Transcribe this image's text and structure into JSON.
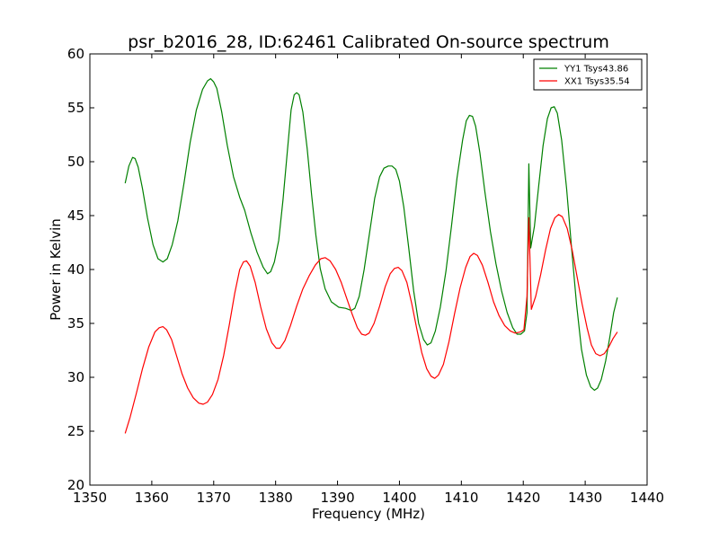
{
  "chart_data": {
    "type": "line",
    "title": "psr_b2016_28, ID:62461 Calibrated On-source spectrum",
    "xlabel": "Frequency (MHz)",
    "ylabel": "Power in Kelvin",
    "xlim": [
      1350,
      1440
    ],
    "ylim": [
      20,
      60
    ],
    "xticks": [
      1350,
      1360,
      1370,
      1380,
      1390,
      1400,
      1410,
      1420,
      1430,
      1440
    ],
    "yticks": [
      20,
      25,
      30,
      35,
      40,
      45,
      50,
      55,
      60
    ],
    "grid": false,
    "legend_position": "top-right",
    "series": [
      {
        "name": "YY1 Tsys43.86",
        "color": "#008000",
        "points": [
          [
            1355.7,
            48.0
          ],
          [
            1356.3,
            49.6
          ],
          [
            1356.9,
            50.4
          ],
          [
            1357.3,
            50.3
          ],
          [
            1357.8,
            49.5
          ],
          [
            1358.5,
            47.5
          ],
          [
            1359.3,
            44.8
          ],
          [
            1360.2,
            42.3
          ],
          [
            1361.0,
            41.0
          ],
          [
            1361.8,
            40.7
          ],
          [
            1362.5,
            41.0
          ],
          [
            1363.3,
            42.3
          ],
          [
            1364.2,
            44.5
          ],
          [
            1365.2,
            48.0
          ],
          [
            1366.2,
            51.8
          ],
          [
            1367.2,
            54.8
          ],
          [
            1368.2,
            56.7
          ],
          [
            1369.0,
            57.5
          ],
          [
            1369.5,
            57.7
          ],
          [
            1370.0,
            57.4
          ],
          [
            1370.5,
            56.8
          ],
          [
            1371.3,
            54.6
          ],
          [
            1372.2,
            51.5
          ],
          [
            1373.2,
            48.6
          ],
          [
            1374.2,
            46.7
          ],
          [
            1375.0,
            45.5
          ],
          [
            1376.0,
            43.4
          ],
          [
            1377.0,
            41.6
          ],
          [
            1378.0,
            40.2
          ],
          [
            1378.7,
            39.6
          ],
          [
            1379.2,
            39.8
          ],
          [
            1379.8,
            40.7
          ],
          [
            1380.5,
            42.7
          ],
          [
            1381.2,
            46.5
          ],
          [
            1381.9,
            51.0
          ],
          [
            1382.5,
            54.8
          ],
          [
            1383.0,
            56.2
          ],
          [
            1383.4,
            56.4
          ],
          [
            1383.8,
            56.2
          ],
          [
            1384.4,
            54.6
          ],
          [
            1385.1,
            51.2
          ],
          [
            1385.8,
            47.0
          ],
          [
            1386.5,
            43.2
          ],
          [
            1387.2,
            40.1
          ],
          [
            1388.0,
            38.2
          ],
          [
            1389.0,
            37.0
          ],
          [
            1390.2,
            36.5
          ],
          [
            1391.3,
            36.4
          ],
          [
            1392.2,
            36.2
          ],
          [
            1392.8,
            36.4
          ],
          [
            1393.5,
            37.5
          ],
          [
            1394.3,
            40.0
          ],
          [
            1395.2,
            43.5
          ],
          [
            1396.0,
            46.6
          ],
          [
            1396.8,
            48.6
          ],
          [
            1397.5,
            49.4
          ],
          [
            1398.2,
            49.6
          ],
          [
            1398.8,
            49.6
          ],
          [
            1399.4,
            49.3
          ],
          [
            1400.0,
            48.2
          ],
          [
            1400.7,
            45.8
          ],
          [
            1401.5,
            42.0
          ],
          [
            1402.3,
            38.0
          ],
          [
            1403.1,
            35.0
          ],
          [
            1403.9,
            33.5
          ],
          [
            1404.5,
            33.0
          ],
          [
            1405.1,
            33.2
          ],
          [
            1405.8,
            34.3
          ],
          [
            1406.6,
            36.5
          ],
          [
            1407.5,
            39.8
          ],
          [
            1408.4,
            44.0
          ],
          [
            1409.3,
            48.5
          ],
          [
            1410.2,
            52.0
          ],
          [
            1410.8,
            53.8
          ],
          [
            1411.3,
            54.3
          ],
          [
            1411.8,
            54.2
          ],
          [
            1412.3,
            53.3
          ],
          [
            1413.0,
            50.8
          ],
          [
            1413.8,
            47.2
          ],
          [
            1414.7,
            43.5
          ],
          [
            1415.6,
            40.5
          ],
          [
            1416.5,
            38.0
          ],
          [
            1417.4,
            36.0
          ],
          [
            1418.3,
            34.6
          ],
          [
            1419.0,
            34.0
          ],
          [
            1419.6,
            34.0
          ],
          [
            1420.2,
            34.3
          ],
          [
            1420.6,
            36.0
          ],
          [
            1420.9,
            49.8
          ],
          [
            1421.2,
            42.0
          ],
          [
            1421.8,
            44.0
          ],
          [
            1422.5,
            47.8
          ],
          [
            1423.2,
            51.5
          ],
          [
            1423.9,
            54.0
          ],
          [
            1424.5,
            55.0
          ],
          [
            1425.0,
            55.1
          ],
          [
            1425.5,
            54.5
          ],
          [
            1426.2,
            52.0
          ],
          [
            1427.0,
            47.5
          ],
          [
            1427.8,
            42.0
          ],
          [
            1428.6,
            36.8
          ],
          [
            1429.4,
            32.6
          ],
          [
            1430.2,
            30.2
          ],
          [
            1430.9,
            29.1
          ],
          [
            1431.5,
            28.8
          ],
          [
            1432.0,
            29.0
          ],
          [
            1432.6,
            29.8
          ],
          [
            1433.3,
            31.5
          ],
          [
            1434.0,
            33.8
          ],
          [
            1434.6,
            36.0
          ],
          [
            1435.2,
            37.4
          ]
        ]
      },
      {
        "name": "XX1 Tsys35.54",
        "color": "#ff0000",
        "points": [
          [
            1355.7,
            24.8
          ],
          [
            1356.5,
            26.3
          ],
          [
            1357.5,
            28.5
          ],
          [
            1358.5,
            30.8
          ],
          [
            1359.5,
            32.8
          ],
          [
            1360.5,
            34.2
          ],
          [
            1361.2,
            34.6
          ],
          [
            1361.8,
            34.7
          ],
          [
            1362.4,
            34.4
          ],
          [
            1363.2,
            33.5
          ],
          [
            1364.0,
            32.0
          ],
          [
            1364.9,
            30.3
          ],
          [
            1365.8,
            29.0
          ],
          [
            1366.7,
            28.1
          ],
          [
            1367.6,
            27.6
          ],
          [
            1368.3,
            27.5
          ],
          [
            1369.0,
            27.7
          ],
          [
            1369.8,
            28.4
          ],
          [
            1370.7,
            29.8
          ],
          [
            1371.6,
            32.0
          ],
          [
            1372.5,
            34.8
          ],
          [
            1373.4,
            37.8
          ],
          [
            1374.2,
            40.0
          ],
          [
            1374.8,
            40.7
          ],
          [
            1375.3,
            40.8
          ],
          [
            1375.9,
            40.3
          ],
          [
            1376.7,
            38.8
          ],
          [
            1377.6,
            36.5
          ],
          [
            1378.5,
            34.5
          ],
          [
            1379.4,
            33.2
          ],
          [
            1380.1,
            32.7
          ],
          [
            1380.7,
            32.7
          ],
          [
            1381.5,
            33.4
          ],
          [
            1382.4,
            34.8
          ],
          [
            1383.4,
            36.6
          ],
          [
            1384.4,
            38.2
          ],
          [
            1385.4,
            39.4
          ],
          [
            1386.4,
            40.4
          ],
          [
            1387.3,
            41.0
          ],
          [
            1388.0,
            41.1
          ],
          [
            1388.8,
            40.8
          ],
          [
            1389.7,
            40.0
          ],
          [
            1390.6,
            38.8
          ],
          [
            1391.5,
            37.3
          ],
          [
            1392.4,
            35.8
          ],
          [
            1393.2,
            34.6
          ],
          [
            1393.9,
            34.0
          ],
          [
            1394.5,
            33.9
          ],
          [
            1395.1,
            34.1
          ],
          [
            1395.9,
            35.0
          ],
          [
            1396.8,
            36.6
          ],
          [
            1397.7,
            38.4
          ],
          [
            1398.5,
            39.6
          ],
          [
            1399.2,
            40.1
          ],
          [
            1399.8,
            40.2
          ],
          [
            1400.4,
            39.9
          ],
          [
            1401.2,
            38.8
          ],
          [
            1402.0,
            36.8
          ],
          [
            1402.8,
            34.5
          ],
          [
            1403.6,
            32.3
          ],
          [
            1404.4,
            30.8
          ],
          [
            1405.1,
            30.1
          ],
          [
            1405.7,
            29.9
          ],
          [
            1406.3,
            30.2
          ],
          [
            1407.1,
            31.2
          ],
          [
            1408.0,
            33.3
          ],
          [
            1408.9,
            35.9
          ],
          [
            1409.8,
            38.3
          ],
          [
            1410.7,
            40.2
          ],
          [
            1411.4,
            41.2
          ],
          [
            1412.0,
            41.5
          ],
          [
            1412.6,
            41.3
          ],
          [
            1413.4,
            40.4
          ],
          [
            1414.3,
            38.8
          ],
          [
            1415.2,
            37.0
          ],
          [
            1416.1,
            35.7
          ],
          [
            1417.0,
            34.8
          ],
          [
            1417.9,
            34.3
          ],
          [
            1418.7,
            34.1
          ],
          [
            1419.5,
            34.2
          ],
          [
            1420.1,
            34.4
          ],
          [
            1420.6,
            37.5
          ],
          [
            1420.9,
            44.8
          ],
          [
            1421.3,
            36.3
          ],
          [
            1422.0,
            37.5
          ],
          [
            1422.8,
            39.5
          ],
          [
            1423.6,
            41.8
          ],
          [
            1424.4,
            43.8
          ],
          [
            1425.1,
            44.8
          ],
          [
            1425.7,
            45.1
          ],
          [
            1426.3,
            44.9
          ],
          [
            1427.1,
            43.8
          ],
          [
            1427.9,
            41.8
          ],
          [
            1428.7,
            39.3
          ],
          [
            1429.5,
            36.8
          ],
          [
            1430.3,
            34.6
          ],
          [
            1431.0,
            33.0
          ],
          [
            1431.7,
            32.2
          ],
          [
            1432.4,
            32.0
          ],
          [
            1433.1,
            32.2
          ],
          [
            1433.8,
            32.8
          ],
          [
            1434.5,
            33.6
          ],
          [
            1435.2,
            34.2
          ]
        ]
      }
    ]
  }
}
